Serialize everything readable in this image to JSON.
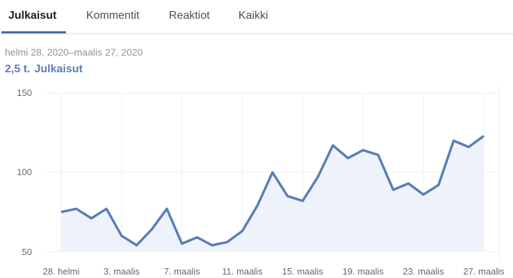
{
  "tabs": [
    {
      "label": "Julkaisut",
      "active": true
    },
    {
      "label": "Kommentit",
      "active": false
    },
    {
      "label": "Reaktiot",
      "active": false
    },
    {
      "label": "Kaikki",
      "active": false
    }
  ],
  "date_range": "helmi 28, 2020–maalis 27, 2020",
  "summary": {
    "value": "2,5 t.",
    "label": "Julkaisut"
  },
  "colors": {
    "accent": "#4267b2",
    "line": "#5a7db5",
    "fill": "#eef2fa"
  },
  "chart_data": {
    "type": "area",
    "title": "",
    "xlabel": "",
    "ylabel": "",
    "ylim": [
      50,
      150
    ],
    "yticks": [
      50,
      100,
      150
    ],
    "xtick_labels": [
      "28. helmi",
      "3. maalis",
      "7. maalis",
      "11. maalis",
      "15. maalis",
      "19. maalis",
      "23. maalis",
      "27. maalis"
    ],
    "grid": true,
    "x": [
      "28. helmi",
      "29. helmi",
      "1. maalis",
      "2. maalis",
      "3. maalis",
      "4. maalis",
      "5. maalis",
      "6. maalis",
      "7. maalis",
      "8. maalis",
      "9. maalis",
      "10. maalis",
      "11. maalis",
      "12. maalis",
      "13. maalis",
      "14. maalis",
      "15. maalis",
      "16. maalis",
      "17. maalis",
      "18. maalis",
      "19. maalis",
      "20. maalis",
      "21. maalis",
      "22. maalis",
      "23. maalis",
      "24. maalis",
      "25. maalis",
      "26. maalis",
      "27. maalis"
    ],
    "series": [
      {
        "name": "Julkaisut",
        "values": [
          75,
          77,
          71,
          77,
          60,
          54,
          64,
          77,
          55,
          59,
          54,
          56,
          63,
          79,
          100,
          85,
          82,
          97,
          117,
          109,
          114,
          111,
          89,
          93,
          86,
          92,
          120,
          116,
          123
        ]
      }
    ]
  }
}
